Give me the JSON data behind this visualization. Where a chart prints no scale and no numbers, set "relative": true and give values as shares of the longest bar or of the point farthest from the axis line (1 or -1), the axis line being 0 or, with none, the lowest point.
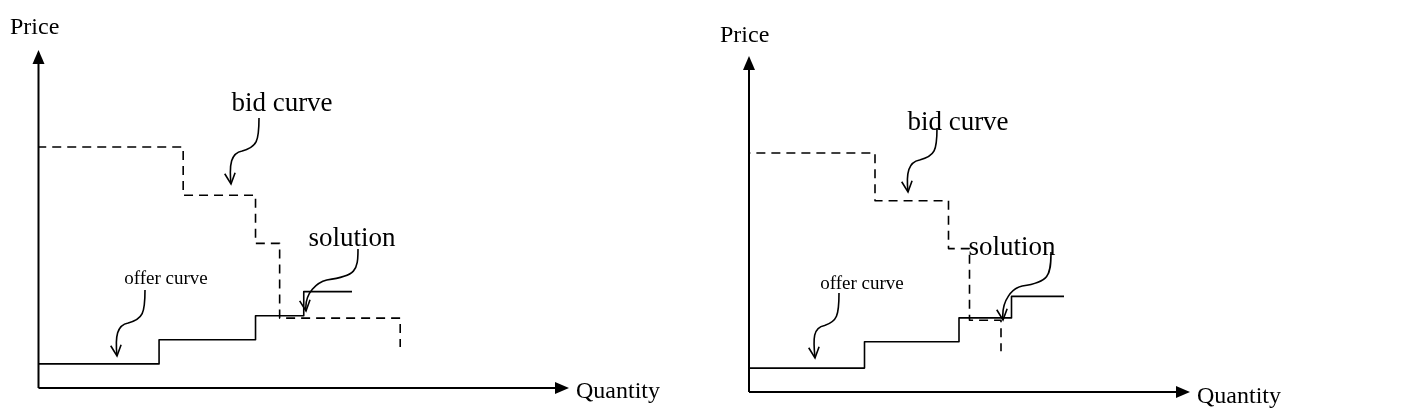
{
  "chart_data": [
    {
      "type": "step",
      "xlabel": "Quantity",
      "ylabel": "Price",
      "relative": true,
      "categories": [
        null,
        null,
        null,
        null,
        null,
        null,
        null,
        null,
        null,
        null,
        null,
        null,
        null,
        null,
        null,
        null,
        null,
        null,
        null,
        null,
        null,
        null,
        null
      ],
      "series": [
        {
          "name": "bid curve",
          "color": "#000000",
          "line_style": "dashed",
          "values": [
            1,
            1,
            1,
            1,
            1,
            1,
            0.8,
            0.8,
            0.8,
            0.6,
            0.29,
            0.29,
            0.29,
            0.29,
            0.29,
            0.17,
            null,
            null,
            null,
            null,
            null,
            null,
            null
          ]
        },
        {
          "name": "offer curve",
          "color": "#000000",
          "line_style": "solid",
          "values": [
            0.1,
            0.1,
            0.1,
            0.1,
            0.1,
            0.2,
            0.2,
            0.2,
            0.2,
            0.3,
            0.3,
            0.4,
            0.4,
            0.4,
            null,
            null,
            null,
            null,
            null,
            null,
            null,
            null,
            null
          ]
        }
      ],
      "annotations": [
        "solution"
      ]
    },
    {
      "type": "step",
      "xlabel": "Quantity",
      "ylabel": "Price",
      "relative": true,
      "categories": [
        null,
        null,
        null,
        null,
        null,
        null,
        null,
        null,
        null,
        null,
        null,
        null,
        null,
        null,
        null,
        null,
        null,
        null,
        null,
        null,
        null,
        null,
        null,
        null,
        null,
        null,
        null,
        null,
        null,
        null,
        null,
        null,
        null,
        null,
        null,
        null,
        null,
        null,
        null,
        null,
        null,
        null,
        null
      ],
      "series": [
        {
          "name": "bid curve",
          "color": "#000000",
          "line_style": "dashed",
          "values": [
            1,
            1,
            1,
            1,
            1,
            1,
            1,
            1,
            1,
            1,
            1,
            1,
            0.8,
            0.8,
            0.8,
            0.8,
            0.8,
            0.8,
            0.8,
            0.6,
            0.6,
            0.3,
            0.3,
            0.3,
            0.17,
            null,
            null,
            null,
            null,
            null,
            null,
            null,
            null,
            null,
            null,
            null,
            null,
            null,
            null,
            null,
            null,
            null,
            null
          ]
        },
        {
          "name": "offer curve",
          "color": "#000000",
          "line_style": "solid",
          "values": [
            0.1,
            0.1,
            0.1,
            0.1,
            0.1,
            0.1,
            0.1,
            0.1,
            0.1,
            0.1,
            0.1,
            0.21,
            0.21,
            0.21,
            0.21,
            0.21,
            0.21,
            0.21,
            0.21,
            0.21,
            0.31,
            0.31,
            0.31,
            0.31,
            0.31,
            0.4,
            0.4,
            0.4,
            0.4,
            0.4,
            0.4,
            null,
            null,
            null,
            null,
            null,
            null,
            null,
            null,
            null,
            null,
            null,
            null
          ]
        }
      ],
      "annotations": [
        "solution"
      ]
    }
  ]
}
